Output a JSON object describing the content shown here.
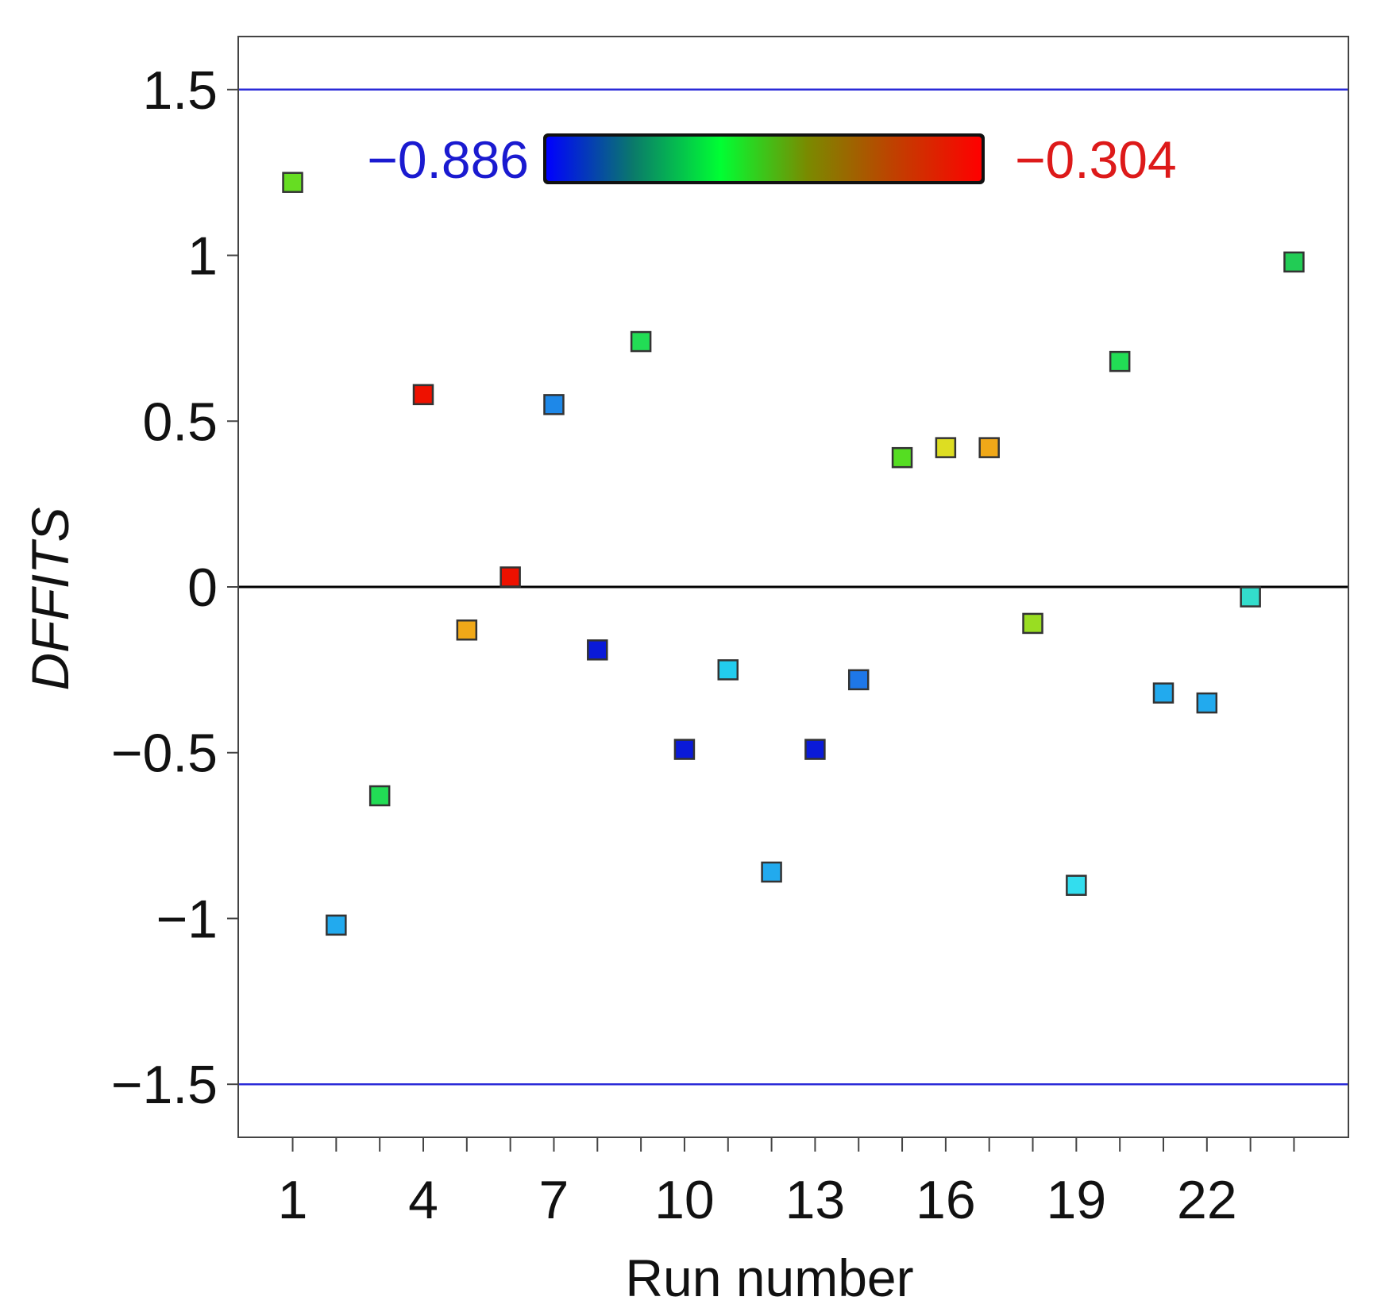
{
  "chart_data": {
    "type": "scatter",
    "xlabel": "Run number",
    "ylabel": "DFFITS",
    "x_ticks": [
      1,
      4,
      7,
      10,
      13,
      16,
      19,
      22
    ],
    "x_minor_ticks": [
      1,
      2,
      3,
      4,
      5,
      6,
      7,
      8,
      9,
      10,
      11,
      12,
      13,
      14,
      15,
      16,
      17,
      18,
      19,
      20,
      21,
      22,
      23,
      24
    ],
    "y_ticks": [
      {
        "value": 1.5,
        "label": "1.5"
      },
      {
        "value": 1,
        "label": "1"
      },
      {
        "value": 0.5,
        "label": "0.5"
      },
      {
        "value": 0,
        "label": "0"
      },
      {
        "value": -0.5,
        "label": "−0.5"
      },
      {
        "value": -1,
        "label": "−1"
      },
      {
        "value": -1.5,
        "label": "−1.5"
      }
    ],
    "xlim": [
      -0.25,
      25.25
    ],
    "ylim": [
      -1.66,
      1.66
    ],
    "reference_lines": [
      {
        "value": 1.5,
        "color": "#2b2bd8"
      },
      {
        "value": 0,
        "color": "#000000"
      },
      {
        "value": -1.5,
        "color": "#2b2bd8"
      }
    ],
    "colorbar": {
      "min_label": "−0.886",
      "max_label": "−0.304",
      "min_color": "#1a1ad0",
      "max_color": "#dd1a1a",
      "gradient": [
        "#0000ff",
        "#0a7a6a",
        "#00ff33",
        "#7a8a00",
        "#c04000",
        "#ff0000"
      ]
    },
    "points": [
      {
        "x": 1,
        "y": 1.22,
        "color": "#66dd22"
      },
      {
        "x": 2,
        "y": -1.02,
        "color": "#22aaee"
      },
      {
        "x": 3,
        "y": -0.63,
        "color": "#22dd55"
      },
      {
        "x": 4,
        "y": 0.58,
        "color": "#ee1100"
      },
      {
        "x": 5,
        "y": -0.13,
        "color": "#f0a818"
      },
      {
        "x": 6,
        "y": 0.03,
        "color": "#ee1100"
      },
      {
        "x": 7,
        "y": 0.55,
        "color": "#1e88e8"
      },
      {
        "x": 8,
        "y": -0.19,
        "color": "#0a1ad8"
      },
      {
        "x": 9,
        "y": 0.74,
        "color": "#22dd55"
      },
      {
        "x": 10,
        "y": -0.49,
        "color": "#0a1ad8"
      },
      {
        "x": 11,
        "y": -0.25,
        "color": "#22ccee"
      },
      {
        "x": 12,
        "y": -0.86,
        "color": "#22aaee"
      },
      {
        "x": 13,
        "y": -0.49,
        "color": "#0a1ad8"
      },
      {
        "x": 14,
        "y": -0.28,
        "color": "#1e77e8"
      },
      {
        "x": 15,
        "y": 0.39,
        "color": "#55dd22"
      },
      {
        "x": 16,
        "y": 0.42,
        "color": "#dddd22"
      },
      {
        "x": 17,
        "y": 0.42,
        "color": "#f0a818"
      },
      {
        "x": 18,
        "y": -0.11,
        "color": "#99dd22"
      },
      {
        "x": 19,
        "y": -0.9,
        "color": "#33ddee"
      },
      {
        "x": 20,
        "y": 0.68,
        "color": "#22dd55"
      },
      {
        "x": 21,
        "y": -0.32,
        "color": "#22aaee"
      },
      {
        "x": 22,
        "y": -0.35,
        "color": "#22aaee"
      },
      {
        "x": 23,
        "y": -0.03,
        "color": "#33ddcc"
      },
      {
        "x": 24,
        "y": 0.98,
        "color": "#22cc55"
      }
    ]
  }
}
